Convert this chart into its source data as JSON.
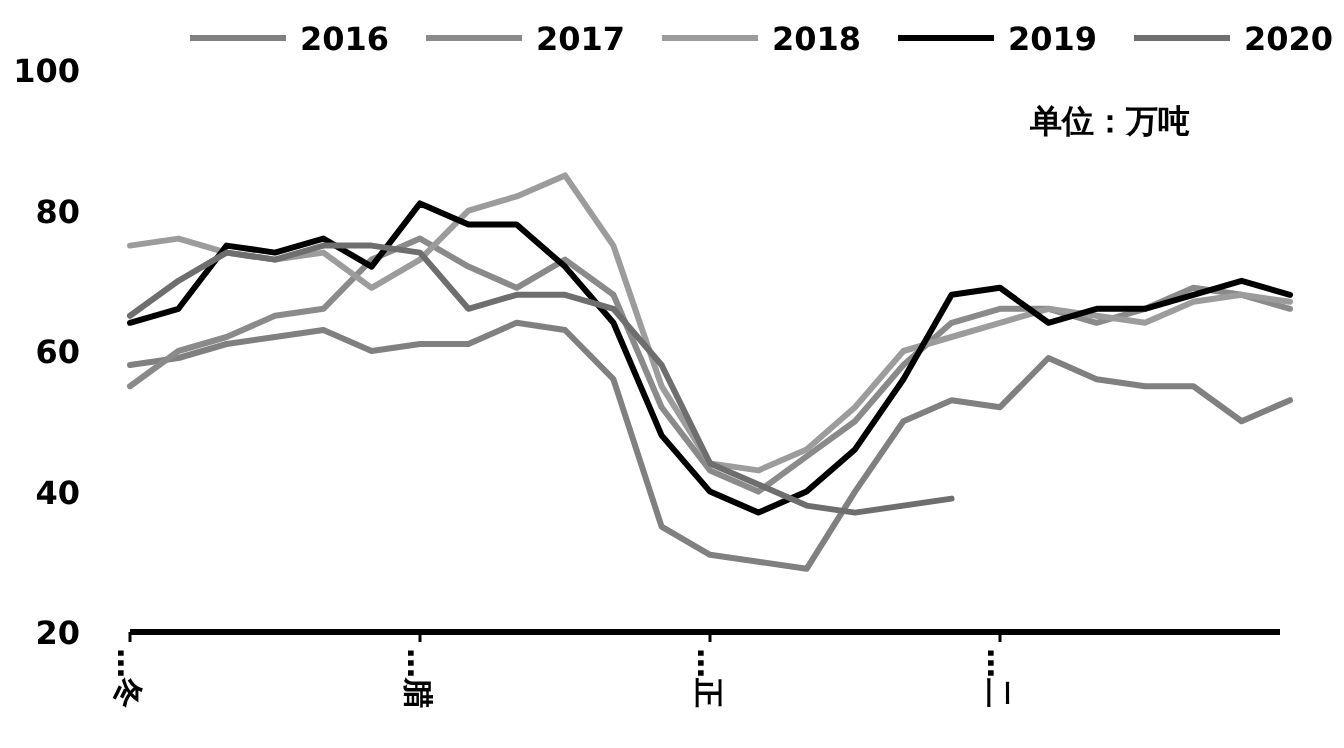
{
  "chart_data": {
    "type": "line",
    "annotations": [
      "单位：万吨"
    ],
    "categories": [
      "…冬",
      null,
      null,
      null,
      null,
      null,
      "…腊",
      null,
      null,
      null,
      null,
      null,
      "…正",
      null,
      null,
      null,
      null,
      null,
      "…二",
      null,
      null,
      null,
      null,
      null,
      null
    ],
    "ylim": [
      20,
      100
    ],
    "yticks": [
      20,
      40,
      60,
      80,
      100
    ],
    "grid": false,
    "legend": "top",
    "marker": "none",
    "line_style": "solid",
    "series": [
      {
        "name": "2016",
        "color": "#808080",
        "values": [
          58,
          59,
          61,
          62,
          63,
          60,
          61,
          61,
          64,
          63,
          56,
          35,
          31,
          30,
          29,
          40,
          50,
          53,
          52,
          59,
          56,
          55,
          55,
          50,
          53
        ]
      },
      {
        "name": "2017",
        "color": "#8a8a8a",
        "values": [
          55,
          60,
          62,
          65,
          66,
          73,
          76,
          72,
          69,
          73,
          68,
          52,
          43,
          40,
          45,
          50,
          58,
          64,
          66,
          66,
          64,
          66,
          69,
          68,
          66
        ]
      },
      {
        "name": "2018",
        "color": "#9c9c9c",
        "values": [
          75,
          76,
          74,
          73,
          74,
          69,
          73,
          80,
          82,
          85,
          75,
          55,
          44,
          43,
          46,
          52,
          60,
          62,
          64,
          66,
          65,
          64,
          67,
          68,
          67
        ]
      },
      {
        "name": "2019",
        "color": "#000000",
        "values": [
          64,
          66,
          75,
          74,
          76,
          72,
          81,
          78,
          78,
          72,
          64,
          48,
          40,
          37,
          40,
          46,
          56,
          68,
          69,
          64,
          66,
          66,
          68,
          70,
          68
        ]
      },
      {
        "name": "2020",
        "color": "#6e6e6e",
        "values": [
          65,
          70,
          74,
          73,
          75,
          75,
          74,
          66,
          68,
          68,
          66,
          58,
          44,
          41,
          38,
          37,
          38,
          39,
          null,
          null,
          null,
          null,
          null,
          null,
          null
        ]
      }
    ]
  }
}
